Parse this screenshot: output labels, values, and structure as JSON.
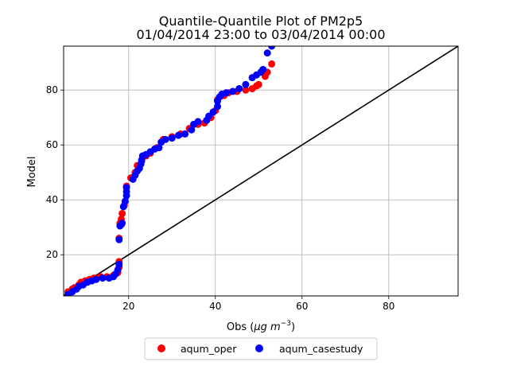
{
  "chart_data": {
    "type": "scatter",
    "title": "Quantile-Quantile Plot of PM2p5",
    "subtitle": "01/04/2014 23:00 to 03/04/2014 00:00",
    "xlabel_prefix": "Obs (",
    "xlabel_unit_mu": "μg",
    "xlabel_unit_m": " m",
    "xlabel_unit_exp": "−3",
    "xlabel_suffix": ")",
    "ylabel": "Model",
    "xlim": [
      5,
      96
    ],
    "ylim": [
      5,
      96
    ],
    "xticks": [
      20,
      40,
      60,
      80
    ],
    "yticks": [
      20,
      40,
      60,
      80
    ],
    "grid": true,
    "reference_line": "1:1",
    "legend_position": "bottom-center",
    "series": [
      {
        "name": "aqum_oper",
        "color": "#ff0000",
        "points": [
          [
            6.0,
            6.5
          ],
          [
            7.0,
            7.5
          ],
          [
            7.5,
            8.0
          ],
          [
            8.5,
            9.0
          ],
          [
            9.0,
            10.0
          ],
          [
            10.0,
            10.5
          ],
          [
            11.0,
            11.0
          ],
          [
            12.0,
            11.5
          ],
          [
            13.5,
            12.0
          ],
          [
            15.0,
            12.0
          ],
          [
            16.5,
            12.5
          ],
          [
            17.5,
            13.5
          ],
          [
            17.8,
            15.5
          ],
          [
            17.8,
            17.5
          ],
          [
            17.8,
            26.0
          ],
          [
            18.0,
            31.5
          ],
          [
            18.3,
            33.0
          ],
          [
            18.5,
            35.0
          ],
          [
            19.0,
            38.0
          ],
          [
            19.5,
            45.0
          ],
          [
            20.5,
            48.0
          ],
          [
            21.5,
            50.0
          ],
          [
            22.0,
            52.5
          ],
          [
            23.0,
            54.0
          ],
          [
            24.0,
            56.0
          ],
          [
            25.0,
            57.0
          ],
          [
            26.5,
            59.0
          ],
          [
            28.0,
            62.0
          ],
          [
            30.0,
            63.0
          ],
          [
            32.0,
            64.0
          ],
          [
            34.0,
            66.0
          ],
          [
            36.0,
            67.5
          ],
          [
            37.5,
            68.0
          ],
          [
            39.0,
            70.0
          ],
          [
            40.0,
            72.5
          ],
          [
            40.5,
            76.5
          ],
          [
            42.0,
            78.0
          ],
          [
            43.0,
            79.0
          ],
          [
            45.0,
            79.5
          ],
          [
            47.0,
            80.0
          ],
          [
            48.5,
            80.5
          ],
          [
            49.5,
            81.5
          ],
          [
            50.0,
            82.0
          ],
          [
            51.5,
            85.0
          ],
          [
            52.0,
            86.5
          ],
          [
            53.0,
            89.5
          ]
        ]
      },
      {
        "name": "aqum_casestudy",
        "color": "#0000ff",
        "points": [
          [
            6.0,
            5.5
          ],
          [
            7.0,
            6.5
          ],
          [
            8.0,
            7.5
          ],
          [
            8.5,
            8.5
          ],
          [
            9.5,
            9.0
          ],
          [
            10.5,
            10.0
          ],
          [
            11.5,
            10.5
          ],
          [
            12.5,
            11.0
          ],
          [
            14.0,
            11.5
          ],
          [
            15.5,
            11.5
          ],
          [
            16.5,
            12.0
          ],
          [
            17.0,
            13.0
          ],
          [
            17.5,
            14.5
          ],
          [
            17.8,
            16.5
          ],
          [
            17.8,
            25.5
          ],
          [
            18.0,
            30.5
          ],
          [
            18.3,
            31.0
          ],
          [
            18.5,
            31.5
          ],
          [
            18.8,
            37.5
          ],
          [
            19.2,
            39.5
          ],
          [
            19.5,
            41.5
          ],
          [
            19.5,
            43.0
          ],
          [
            19.5,
            44.5
          ],
          [
            21.0,
            47.5
          ],
          [
            21.5,
            49.0
          ],
          [
            22.0,
            50.5
          ],
          [
            22.5,
            51.5
          ],
          [
            22.8,
            53.0
          ],
          [
            23.0,
            54.5
          ],
          [
            23.2,
            56.0
          ],
          [
            24.0,
            56.5
          ],
          [
            25.0,
            57.5
          ],
          [
            26.0,
            58.5
          ],
          [
            27.0,
            59.0
          ],
          [
            27.5,
            61.0
          ],
          [
            28.5,
            62.0
          ],
          [
            30.0,
            62.5
          ],
          [
            31.5,
            63.5
          ],
          [
            33.0,
            64.0
          ],
          [
            34.5,
            65.5
          ],
          [
            35.0,
            67.5
          ],
          [
            36.0,
            68.5
          ],
          [
            38.0,
            69.0
          ],
          [
            38.5,
            70.5
          ],
          [
            39.5,
            72.0
          ],
          [
            40.5,
            74.0
          ],
          [
            40.5,
            76.0
          ],
          [
            41.0,
            77.5
          ],
          [
            41.5,
            78.5
          ],
          [
            42.5,
            79.0
          ],
          [
            44.0,
            79.5
          ],
          [
            45.5,
            80.5
          ],
          [
            47.0,
            82.0
          ],
          [
            48.5,
            84.5
          ],
          [
            49.5,
            85.5
          ],
          [
            50.5,
            86.5
          ],
          [
            51.0,
            87.5
          ],
          [
            52.0,
            93.5
          ],
          [
            53.0,
            96.0
          ]
        ]
      }
    ]
  }
}
